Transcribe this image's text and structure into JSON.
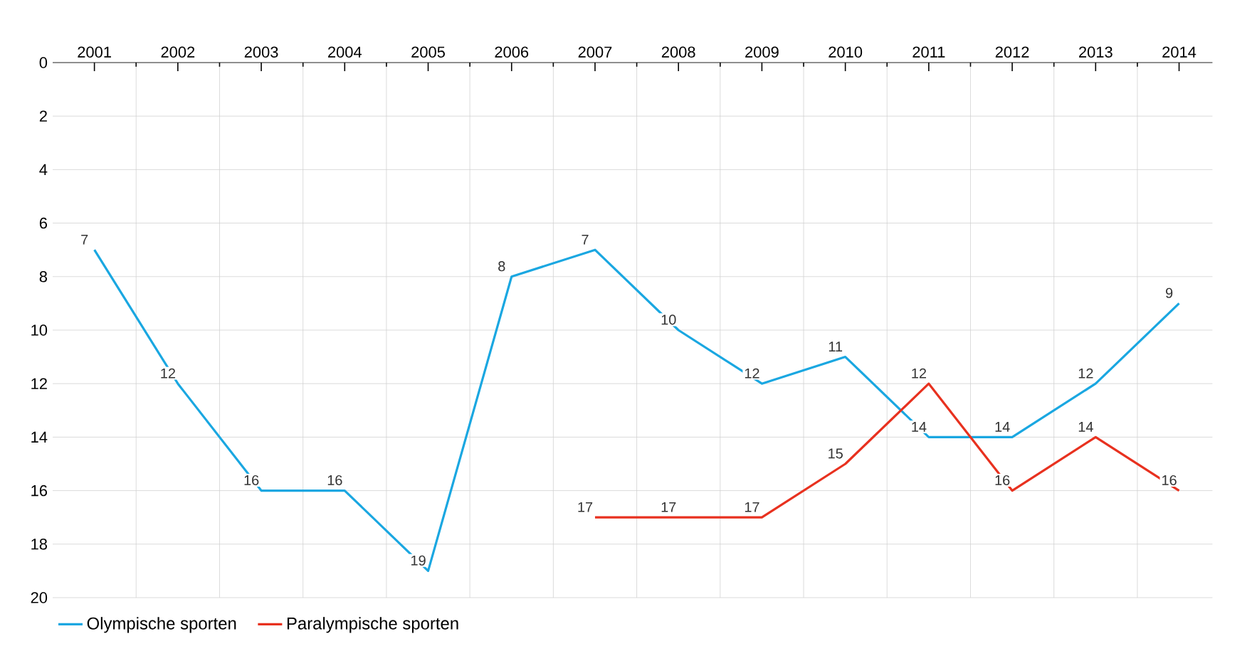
{
  "chart_data": {
    "type": "line",
    "categories": [
      "2001",
      "2002",
      "2003",
      "2004",
      "2005",
      "2006",
      "2007",
      "2008",
      "2009",
      "2010",
      "2011",
      "2012",
      "2013",
      "2014"
    ],
    "series": [
      {
        "name": "Olympische sporten",
        "color": "#1aa7e1",
        "values": [
          7,
          12,
          16,
          16,
          19,
          8,
          7,
          10,
          12,
          11,
          14,
          14,
          12,
          9
        ]
      },
      {
        "name": "Paralympische sporten",
        "color": "#e8311f",
        "values": [
          null,
          null,
          null,
          null,
          null,
          null,
          17,
          17,
          17,
          15,
          12,
          16,
          14,
          16
        ]
      }
    ],
    "ylim": [
      20,
      0
    ],
    "yticks": [
      0,
      2,
      4,
      6,
      8,
      10,
      12,
      14,
      16,
      18,
      20
    ],
    "grid": true,
    "legend": "bottom",
    "data_labels": true,
    "marker": "none",
    "line_style": "solid"
  }
}
